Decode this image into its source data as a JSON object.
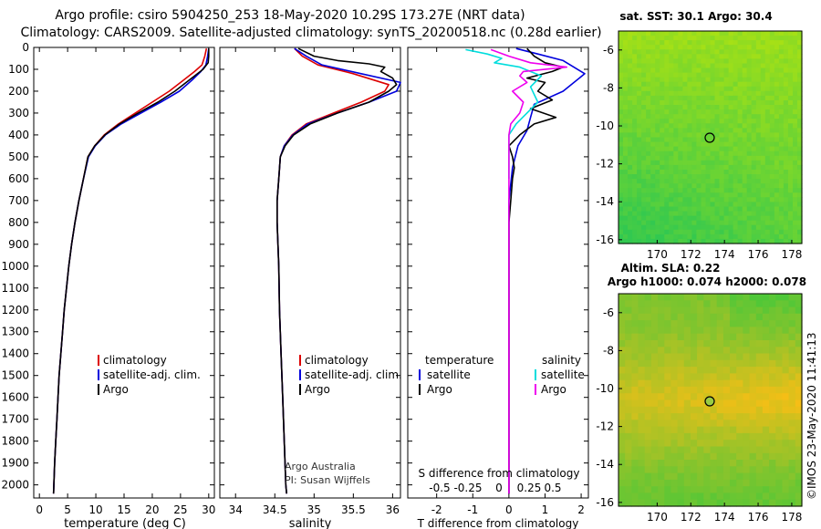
{
  "header": {
    "line1": "Argo profile: csiro 5904250_253 18-May-2020 10.29S 173.27E (NRT data)",
    "line2": "Climatology: CARS2009. Satellite-adjusted climatology: synTS_20200518.nc (0.28d earlier)"
  },
  "depth_axis": {
    "ticks": [
      0,
      100,
      200,
      300,
      400,
      500,
      600,
      700,
      800,
      900,
      1000,
      1100,
      1200,
      1300,
      1400,
      1500,
      1600,
      1700,
      1800,
      1900,
      2000
    ],
    "range": [
      0,
      2060
    ]
  },
  "colors": {
    "climatology": "#dd0000",
    "satellite": "#0000dd",
    "argo": "#000000",
    "cyan": "#00dddd",
    "magenta": "#ee00ee",
    "map1_base": "#66cc22",
    "map2_base": "#ffcc22"
  },
  "chart_data": [
    {
      "type": "line",
      "panel": "temperature",
      "xlabel": "temperature (deg C)",
      "ylabel": "",
      "xlim": [
        -1,
        31
      ],
      "xticks": [
        0,
        5,
        10,
        15,
        20,
        25,
        30
      ],
      "legend": {
        "position": "bottom-right",
        "entries": [
          "climatology",
          "satellite-adj. clim.",
          "Argo"
        ]
      },
      "series": [
        {
          "name": "climatology",
          "color": "#dd0000",
          "points": [
            [
              29.6,
              5
            ],
            [
              29.3,
              40
            ],
            [
              28.8,
              80
            ],
            [
              27.5,
              110
            ],
            [
              25.5,
              150
            ],
            [
              23.0,
              200
            ],
            [
              20.0,
              250
            ],
            [
              17.0,
              300
            ],
            [
              14.0,
              350
            ],
            [
              11.5,
              400
            ],
            [
              9.8,
              450
            ],
            [
              8.6,
              500
            ],
            [
              7.8,
              600
            ],
            [
              7.0,
              700
            ],
            [
              6.3,
              800
            ],
            [
              5.7,
              900
            ],
            [
              5.2,
              1000
            ],
            [
              4.8,
              1100
            ],
            [
              4.4,
              1200
            ],
            [
              4.1,
              1300
            ],
            [
              3.8,
              1400
            ],
            [
              3.5,
              1500
            ],
            [
              3.3,
              1600
            ],
            [
              3.1,
              1700
            ],
            [
              2.9,
              1800
            ],
            [
              2.7,
              1900
            ],
            [
              2.5,
              2040
            ]
          ]
        },
        {
          "name": "satellite-adj. clim.",
          "color": "#0000dd",
          "points": [
            [
              30.0,
              5
            ],
            [
              29.8,
              40
            ],
            [
              29.5,
              80
            ],
            [
              28.6,
              110
            ],
            [
              27.0,
              150
            ],
            [
              24.8,
              200
            ],
            [
              21.5,
              250
            ],
            [
              18.0,
              300
            ],
            [
              14.5,
              350
            ],
            [
              11.7,
              400
            ],
            [
              9.9,
              450
            ],
            [
              8.7,
              500
            ],
            [
              7.8,
              600
            ],
            [
              7.0,
              700
            ],
            [
              6.3,
              800
            ],
            [
              5.7,
              900
            ],
            [
              5.2,
              1000
            ],
            [
              4.8,
              1100
            ],
            [
              4.4,
              1200
            ],
            [
              4.1,
              1300
            ],
            [
              3.8,
              1400
            ],
            [
              3.5,
              1500
            ],
            [
              3.3,
              1600
            ],
            [
              3.1,
              1700
            ],
            [
              2.9,
              1800
            ],
            [
              2.7,
              1900
            ],
            [
              2.5,
              2040
            ]
          ]
        },
        {
          "name": "Argo",
          "color": "#000000",
          "points": [
            [
              30.0,
              5
            ],
            [
              30.0,
              40
            ],
            [
              29.9,
              70
            ],
            [
              29.0,
              100
            ],
            [
              27.5,
              130
            ],
            [
              26.0,
              160
            ],
            [
              24.0,
              200
            ],
            [
              21.0,
              250
            ],
            [
              17.5,
              300
            ],
            [
              14.2,
              350
            ],
            [
              11.6,
              400
            ],
            [
              9.8,
              450
            ],
            [
              8.6,
              500
            ],
            [
              7.8,
              600
            ],
            [
              7.0,
              700
            ],
            [
              6.3,
              800
            ],
            [
              5.7,
              900
            ],
            [
              5.2,
              1000
            ],
            [
              4.8,
              1100
            ],
            [
              4.4,
              1200
            ],
            [
              4.1,
              1300
            ],
            [
              3.8,
              1400
            ],
            [
              3.5,
              1500
            ],
            [
              3.3,
              1600
            ],
            [
              3.1,
              1700
            ],
            [
              2.9,
              1800
            ],
            [
              2.7,
              1900
            ],
            [
              2.5,
              2040
            ]
          ]
        }
      ]
    },
    {
      "type": "line",
      "panel": "salinity",
      "xlabel": "salinity",
      "ylabel": "",
      "xlim": [
        33.8,
        36.1
      ],
      "xticks": [
        34,
        34.5,
        35,
        35.5,
        36
      ],
      "legend": {
        "position": "bottom-right",
        "entries": [
          "climatology",
          "satellite-adj. clim.",
          "Argo"
        ]
      },
      "annotations": [
        "Argo Australia",
        "PI: Susan Wijffels"
      ],
      "series": [
        {
          "name": "climatology",
          "color": "#dd0000",
          "points": [
            [
              34.75,
              5
            ],
            [
              34.85,
              40
            ],
            [
              35.05,
              80
            ],
            [
              35.5,
              120
            ],
            [
              35.95,
              170
            ],
            [
              35.9,
              200
            ],
            [
              35.6,
              250
            ],
            [
              35.25,
              300
            ],
            [
              34.9,
              350
            ],
            [
              34.72,
              400
            ],
            [
              34.62,
              450
            ],
            [
              34.57,
              500
            ],
            [
              34.55,
              600
            ],
            [
              34.53,
              700
            ],
            [
              34.53,
              800
            ],
            [
              34.54,
              900
            ],
            [
              34.55,
              1000
            ],
            [
              34.56,
              1200
            ],
            [
              34.58,
              1400
            ],
            [
              34.6,
              1600
            ],
            [
              34.62,
              1800
            ],
            [
              34.64,
              2000
            ],
            [
              34.65,
              2040
            ]
          ]
        },
        {
          "name": "satellite-adj. clim.",
          "color": "#0000dd",
          "points": [
            [
              34.75,
              5
            ],
            [
              34.9,
              40
            ],
            [
              35.1,
              80
            ],
            [
              35.6,
              120
            ],
            [
              36.1,
              160
            ],
            [
              36.05,
              200
            ],
            [
              35.7,
              250
            ],
            [
              35.3,
              300
            ],
            [
              34.92,
              350
            ],
            [
              34.73,
              400
            ],
            [
              34.62,
              450
            ],
            [
              34.57,
              500
            ],
            [
              34.55,
              600
            ],
            [
              34.53,
              700
            ],
            [
              34.53,
              800
            ],
            [
              34.54,
              900
            ],
            [
              34.55,
              1000
            ],
            [
              34.56,
              1200
            ],
            [
              34.58,
              1400
            ],
            [
              34.6,
              1600
            ],
            [
              34.62,
              1800
            ],
            [
              34.64,
              2000
            ],
            [
              34.65,
              2040
            ]
          ]
        },
        {
          "name": "Argo",
          "color": "#000000",
          "points": [
            [
              34.8,
              5
            ],
            [
              35.0,
              40
            ],
            [
              35.3,
              60
            ],
            [
              35.7,
              75
            ],
            [
              35.9,
              90
            ],
            [
              35.85,
              110
            ],
            [
              36.0,
              140
            ],
            [
              36.05,
              170
            ],
            [
              35.95,
              200
            ],
            [
              35.7,
              250
            ],
            [
              35.3,
              300
            ],
            [
              34.95,
              350
            ],
            [
              34.74,
              400
            ],
            [
              34.63,
              450
            ],
            [
              34.57,
              500
            ],
            [
              34.55,
              600
            ],
            [
              34.53,
              700
            ],
            [
              34.53,
              800
            ],
            [
              34.54,
              900
            ],
            [
              34.55,
              1000
            ],
            [
              34.56,
              1200
            ],
            [
              34.58,
              1400
            ],
            [
              34.6,
              1600
            ],
            [
              34.62,
              1800
            ],
            [
              34.64,
              2000
            ],
            [
              34.65,
              2040
            ]
          ]
        }
      ]
    },
    {
      "type": "line",
      "panel": "difference",
      "xlabel": "T difference from climatology",
      "xlabel_top": "S difference from climatology",
      "ylabel": "",
      "xlim": [
        -2.8,
        2.2
      ],
      "xticks": [
        -2,
        -1,
        0,
        1,
        2
      ],
      "s_xticks": [
        "-0.5",
        "-0.25",
        "0",
        "0.25",
        "0.5"
      ],
      "legend": {
        "position": "bottom",
        "temperature_heading": "temperature",
        "salinity_heading": "salinity",
        "entries": [
          "satellite",
          "Argo",
          "satellite",
          "Argo"
        ]
      },
      "series": [
        {
          "name": "temperature satellite",
          "color": "#0000dd",
          "points": [
            [
              0.2,
              5
            ],
            [
              0.8,
              30
            ],
            [
              1.5,
              60
            ],
            [
              2.1,
              120
            ],
            [
              1.5,
              200
            ],
            [
              0.7,
              260
            ],
            [
              0.6,
              320
            ],
            [
              0.5,
              380
            ],
            [
              0.25,
              450
            ],
            [
              0.1,
              550
            ],
            [
              0.0,
              700
            ],
            [
              0.0,
              900
            ],
            [
              0.0,
              1100
            ],
            [
              0.0,
              1300
            ],
            [
              0.0,
              1500
            ],
            [
              0.0,
              1700
            ],
            [
              0.0,
              2040
            ]
          ]
        },
        {
          "name": "temperature Argo",
          "color": "#000000",
          "points": [
            [
              0.5,
              5
            ],
            [
              0.7,
              40
            ],
            [
              1.0,
              70
            ],
            [
              1.5,
              90
            ],
            [
              1.2,
              110
            ],
            [
              0.5,
              140
            ],
            [
              1.0,
              160
            ],
            [
              0.8,
              200
            ],
            [
              1.2,
              240
            ],
            [
              0.6,
              280
            ],
            [
              1.3,
              320
            ],
            [
              0.7,
              350
            ],
            [
              0.3,
              400
            ],
            [
              0.0,
              450
            ],
            [
              0.1,
              500
            ],
            [
              0.15,
              550
            ],
            [
              0.1,
              600
            ],
            [
              0.05,
              700
            ],
            [
              0.0,
              800
            ],
            [
              0.0,
              900
            ],
            [
              0.0,
              1100
            ],
            [
              0.0,
              1300
            ],
            [
              0.0,
              1500
            ],
            [
              0.0,
              1700
            ],
            [
              0.0,
              2040
            ]
          ]
        },
        {
          "name": "salinity satellite",
          "color": "#00dddd",
          "points": [
            [
              -1.2,
              10
            ],
            [
              -0.6,
              30
            ],
            [
              -0.2,
              50
            ],
            [
              -0.4,
              70
            ],
            [
              0.3,
              90
            ],
            [
              0.9,
              130
            ],
            [
              0.6,
              180
            ],
            [
              0.8,
              250
            ],
            [
              0.5,
              300
            ],
            [
              0.2,
              350
            ],
            [
              0.0,
              400
            ],
            [
              0.0,
              600
            ]
          ]
        },
        {
          "name": "salinity Argo",
          "color": "#ee00ee",
          "points": [
            [
              -0.5,
              10
            ],
            [
              0.0,
              40
            ],
            [
              0.6,
              70
            ],
            [
              1.6,
              90
            ],
            [
              0.4,
              110
            ],
            [
              0.3,
              130
            ],
            [
              0.5,
              160
            ],
            [
              0.1,
              200
            ],
            [
              0.4,
              250
            ],
            [
              0.3,
              300
            ],
            [
              0.05,
              350
            ],
            [
              0.0,
              400
            ],
            [
              0.0,
              600
            ],
            [
              0.0,
              1000
            ],
            [
              0.0,
              1300
            ],
            [
              0.0,
              1600
            ],
            [
              0.0,
              2040
            ]
          ]
        }
      ]
    }
  ],
  "map_sst": {
    "title": "sat. SST: 30.1 Argo: 30.4",
    "yticks": [
      "-6",
      "-8",
      "-10",
      "-12",
      "-14",
      "-16"
    ],
    "xticks": [
      "170",
      "172",
      "174",
      "176",
      "178"
    ]
  },
  "map_sla": {
    "title_line1": "Altim. SLA: 0.22",
    "title_line2": "Argo h1000: 0.074 h2000: 0.078",
    "yticks": [
      "-6",
      "-8",
      "-10",
      "-12",
      "-14",
      "-16"
    ],
    "xticks": [
      "170",
      "172",
      "174",
      "176",
      "178"
    ]
  },
  "footer": {
    "stamp": "©IMOS 23-May-2020 11:41:13"
  }
}
